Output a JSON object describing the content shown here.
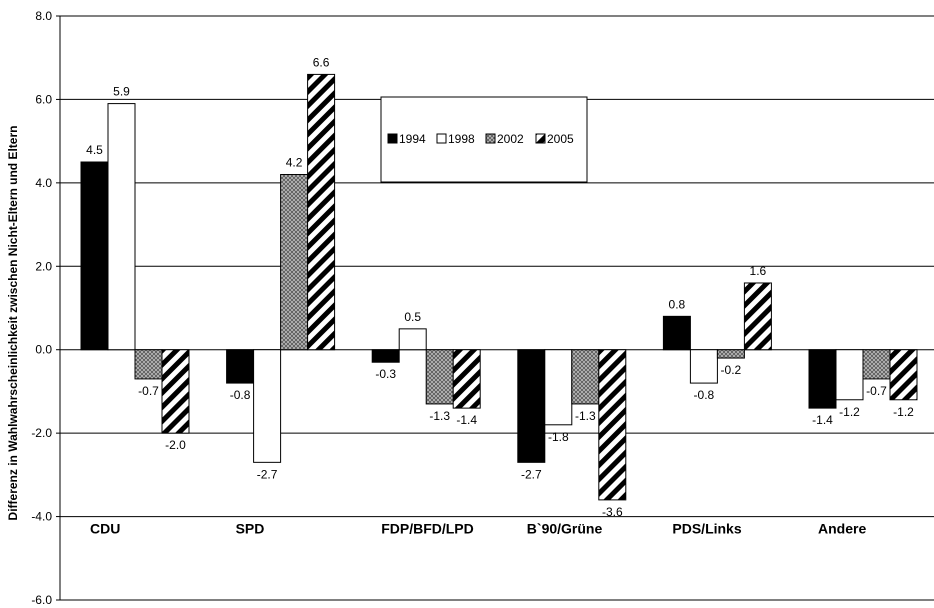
{
  "chart_data": {
    "type": "bar",
    "title": "",
    "xlabel": "",
    "ylabel": "Differenz in Wahlwahrscheinlichkeit zwischen Nicht-Eltern und Eltern",
    "ylim": [
      -6.0,
      8.0
    ],
    "yticks": [
      "-6.0",
      "-4.0",
      "-2.0",
      "0.0",
      "2.0",
      "4.0",
      "6.0",
      "8.0"
    ],
    "grid": true,
    "legend_position": "top-center",
    "categories": [
      "CDU",
      "SPD",
      "FDP/BFD/LPD",
      "B`90/Grüne",
      "PDS/Links",
      "Andere"
    ],
    "series": [
      {
        "name": "1994",
        "values": [
          4.5,
          -0.8,
          -0.3,
          -2.7,
          0.8,
          -1.4
        ],
        "labels": [
          "4.5",
          "-0.8",
          "-0.3",
          "-2.7",
          "0.8",
          "-1.4"
        ]
      },
      {
        "name": "1998",
        "values": [
          5.9,
          -2.7,
          0.5,
          -1.8,
          -0.8,
          -1.2
        ],
        "labels": [
          "5.9",
          "-2.7",
          "0.5",
          "-1.8",
          "-0.8",
          "-1.2"
        ]
      },
      {
        "name": "2002",
        "values": [
          -0.7,
          4.2,
          -1.3,
          -1.3,
          -0.2,
          -0.7
        ],
        "labels": [
          "-0.7",
          "4.2",
          "-1.3",
          "-1.3",
          "-0.2",
          "-0.7"
        ]
      },
      {
        "name": "2005",
        "values": [
          -2.0,
          6.6,
          -1.4,
          -3.6,
          1.6,
          -1.2
        ],
        "labels": [
          "-2.0",
          "6.6",
          "-1.4",
          "-3.6",
          "1.6",
          "-1.2"
        ]
      }
    ],
    "colors": {
      "1994": "#000000",
      "1998": "#ffffff",
      "2002": "#9a9a9a",
      "2005": "diagonal-stripes"
    }
  }
}
